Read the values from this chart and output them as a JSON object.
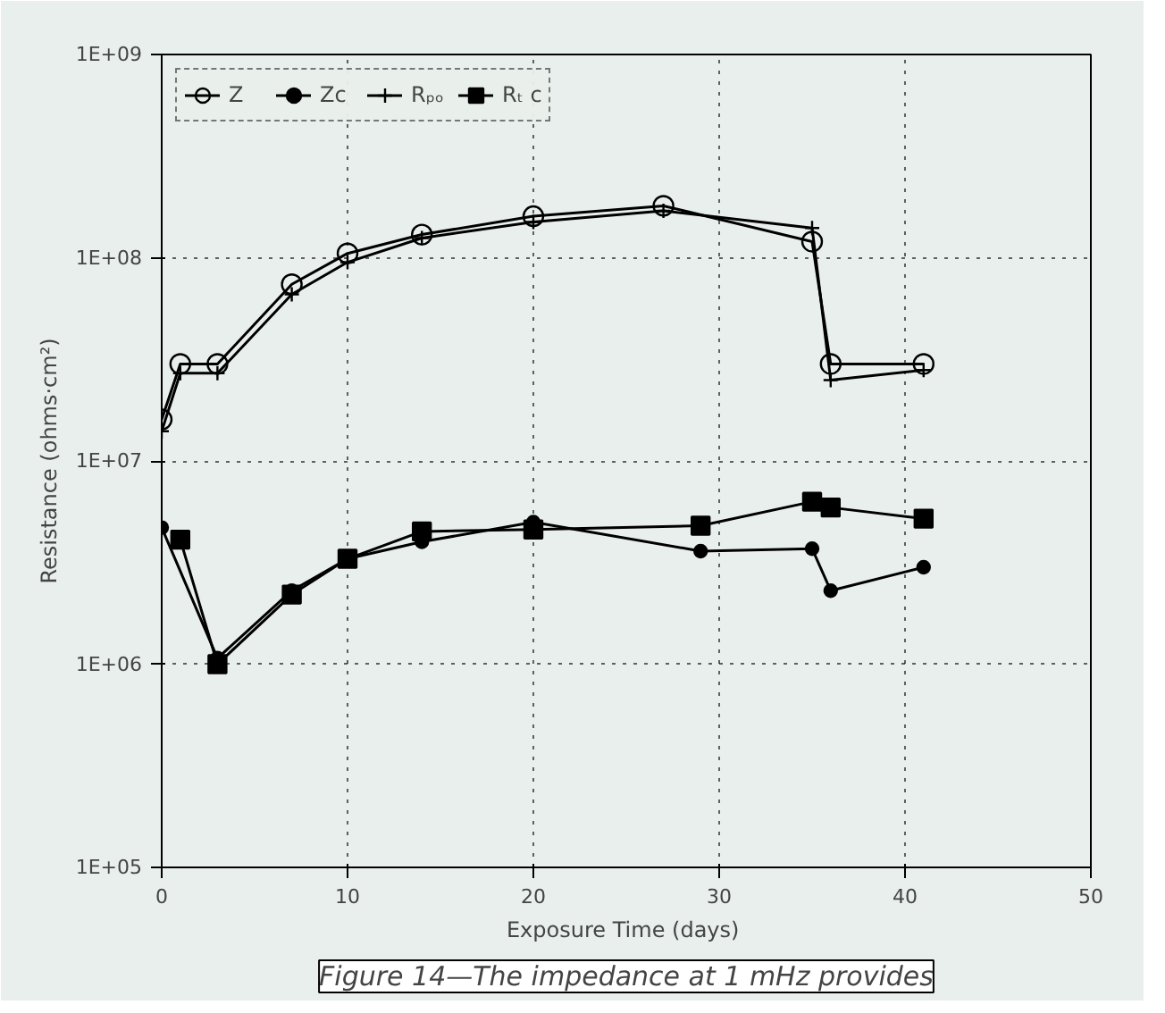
{
  "chart_data": {
    "type": "line",
    "xlabel": "Exposure Time  (days)",
    "ylabel": "Resistance (ohms·cm²)",
    "log": "y",
    "xlim": [
      0,
      50
    ],
    "xticks": [
      0,
      10,
      20,
      30,
      40,
      50
    ],
    "ylim": [
      100000,
      1000000000
    ],
    "yticks": [
      {
        "value": 100000,
        "label": "1E+05"
      },
      {
        "value": 1000000,
        "label": "1E+06"
      },
      {
        "value": 10000000,
        "label": "1E+07"
      },
      {
        "value": 100000000,
        "label": "1E+08"
      },
      {
        "value": 1000000000,
        "label": "1E+09"
      }
    ],
    "grid": true,
    "legend": "top left",
    "annotations": [
      "Figure 14—The impedance at 1 mHz provides"
    ],
    "series": [
      {
        "name": "Z",
        "color": "#000000",
        "marker": "circle_open",
        "x": [
          0,
          1,
          3,
          7,
          10,
          14,
          20,
          27,
          35,
          36,
          41
        ],
        "values": [
          16000000,
          30000000,
          30000000,
          74000000,
          105000000,
          130000000,
          160000000,
          180000000,
          120000000,
          30000000,
          30000000
        ]
      },
      {
        "name": "Zc",
        "color": "#000000",
        "marker": "circle",
        "x": [
          0,
          3,
          7,
          10,
          14,
          20,
          29,
          35,
          36,
          41
        ],
        "values": [
          4700000,
          1070000,
          2300000,
          3300000,
          4000000,
          5000000,
          3600000,
          3700000,
          2300000,
          3000000
        ]
      },
      {
        "name": "Rₚₒ",
        "color": "#000000",
        "marker": "cross",
        "x": [
          0,
          1,
          3,
          7,
          10,
          14,
          20,
          27,
          35,
          36,
          41
        ],
        "values": [
          14000000,
          27000000,
          27000000,
          66000000,
          95000000,
          125000000,
          150000000,
          170000000,
          140000000,
          25000000,
          28000000
        ]
      },
      {
        "name": "Rₜ c",
        "color": "#000000",
        "marker": "square",
        "x": [
          1,
          3,
          7,
          10,
          14,
          20,
          29,
          35,
          36,
          41
        ],
        "values": [
          4100000,
          1000000,
          2200000,
          3300000,
          4500000,
          4600000,
          4800000,
          6300000,
          5900000,
          5200000
        ]
      }
    ]
  }
}
